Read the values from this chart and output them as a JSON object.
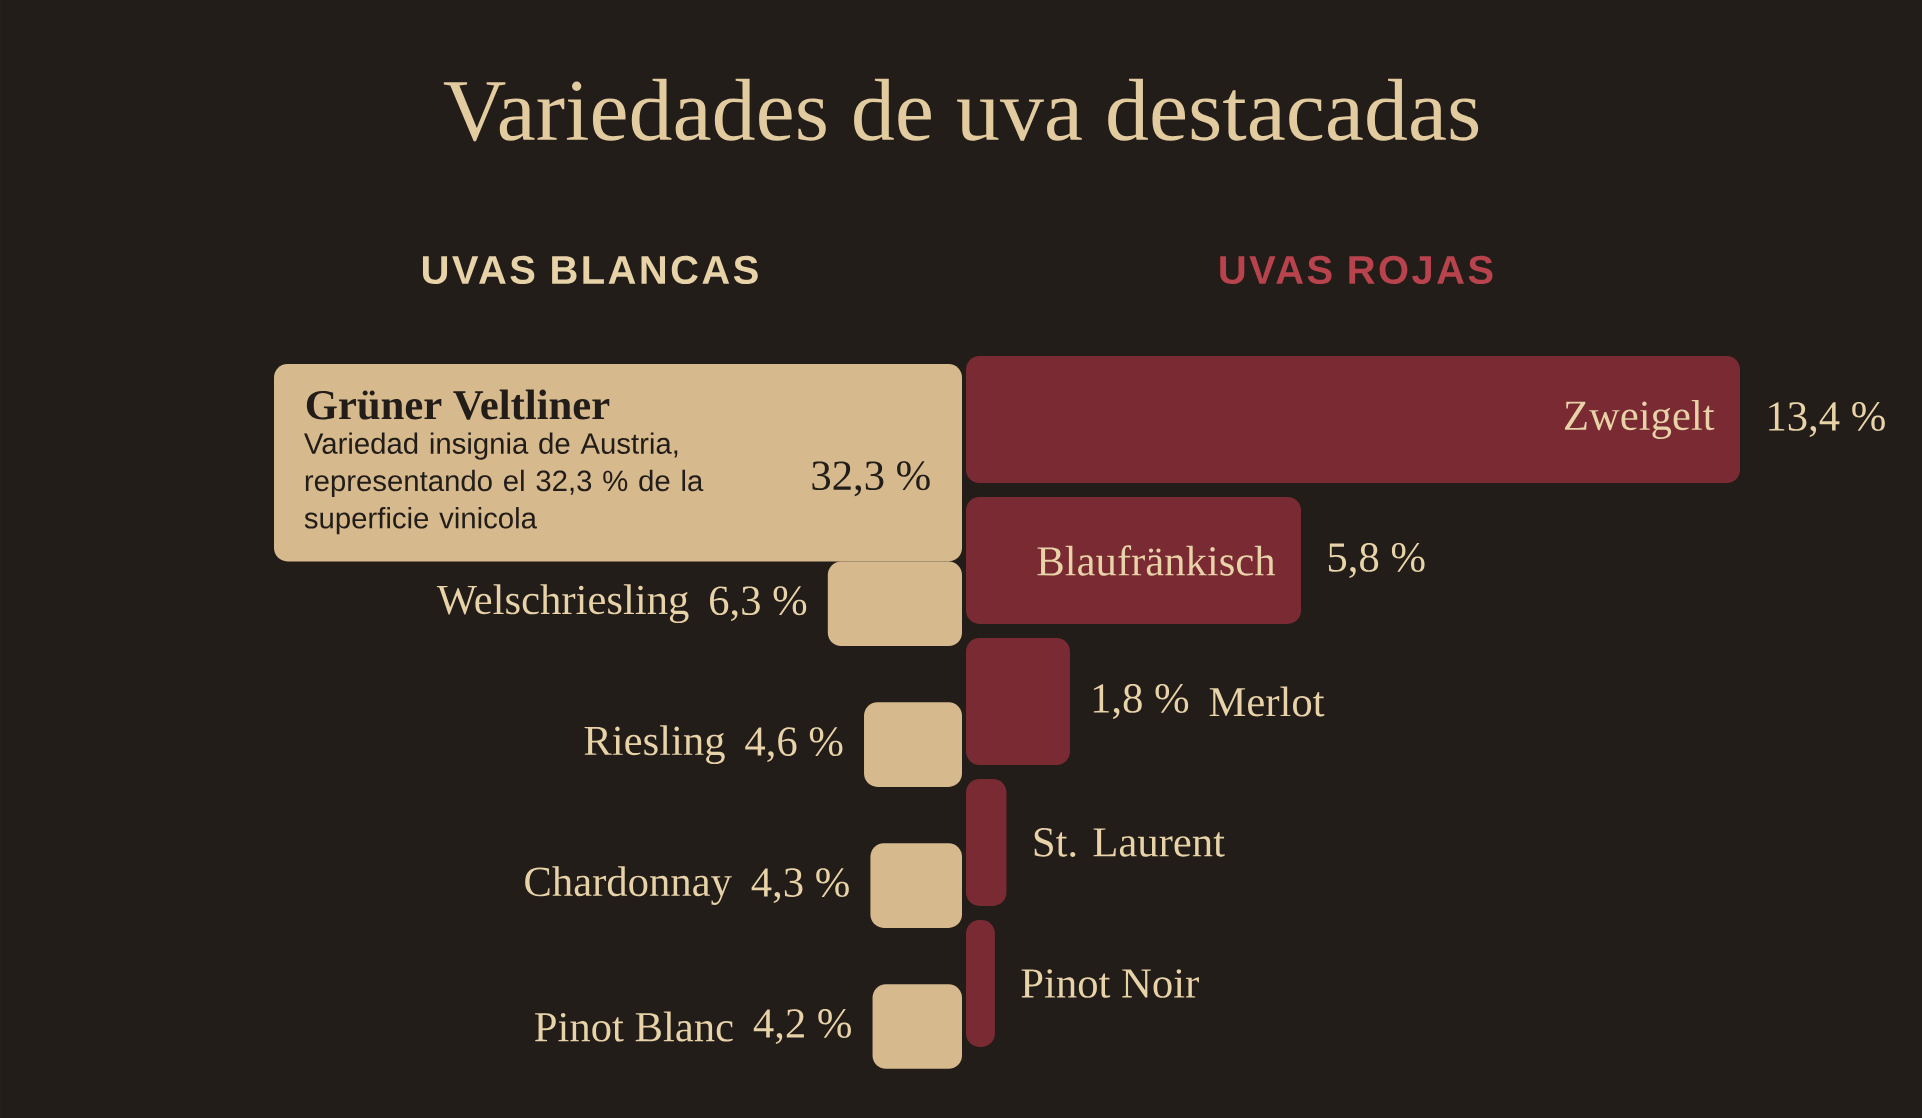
{
  "chart_data": [
    {
      "type": "bar",
      "orientation": "horizontal",
      "title": "Variedades de uva destacadas",
      "subtitle": "UVAS BLANCAS",
      "categories": [
        "Grüner Veltliner",
        "Welschriesling",
        "Riesling",
        "Chardonnay",
        "Pinot Blanc"
      ],
      "values": [
        32.3,
        6.3,
        4.6,
        4.3,
        4.2
      ],
      "value_labels": [
        "32,3 %",
        "6,3 %",
        "4,6 %",
        "4,3 %",
        "4,2 %"
      ],
      "color": "#d6b98c",
      "tick_labels": false,
      "annotations": [
        "Variedad insignia de Austria, representando el 32,3 % de la superficie vinicola"
      ]
    },
    {
      "type": "bar",
      "orientation": "horizontal",
      "title": "UVAS ROJAS",
      "categories": [
        "Zweigelt",
        "Blaufränkisch",
        "Merlot",
        "St. Laurent",
        "Pinot Noir"
      ],
      "values": [
        13.4,
        5.8,
        1.8,
        0.7,
        0.5
      ],
      "value_labels": [
        "13,4 %",
        "5,8 %",
        "1,8 %",
        null,
        null
      ],
      "color": "#7a2a33",
      "tick_labels": false
    }
  ]
}
